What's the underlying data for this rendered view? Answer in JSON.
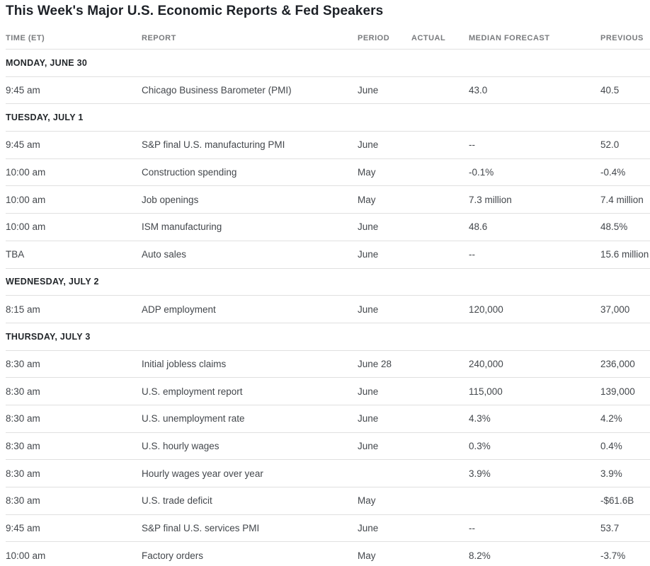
{
  "title": "This Week's Major U.S. Economic Reports & Fed Speakers",
  "columns": [
    "TIME (ET)",
    "REPORT",
    "PERIOD",
    "ACTUAL",
    "MEDIAN FORECAST",
    "PREVIOUS"
  ],
  "colors": {
    "title": "#1d2127",
    "day": "#23272b",
    "text": "#43474c",
    "muted": "#797b7e",
    "divider": "#e0e0e0",
    "bg": "#ffffff"
  },
  "groups": [
    {
      "day": "MONDAY, JUNE 30",
      "rows": [
        {
          "time": "9:45 am",
          "report": "Chicago Business Barometer (PMI)",
          "period": "June",
          "actual": "",
          "median_forecast": "43.0",
          "previous": "40.5"
        }
      ]
    },
    {
      "day": "TUESDAY, JULY 1",
      "rows": [
        {
          "time": "9:45 am",
          "report": "S&P final U.S. manufacturing PMI",
          "period": "June",
          "actual": "",
          "median_forecast": "--",
          "previous": "52.0"
        },
        {
          "time": "10:00 am",
          "report": "Construction spending",
          "period": "May",
          "actual": "",
          "median_forecast": "-0.1%",
          "previous": "-0.4%"
        },
        {
          "time": "10:00 am",
          "report": "Job openings",
          "period": "May",
          "actual": "",
          "median_forecast": "7.3 million",
          "previous": "7.4 million"
        },
        {
          "time": "10:00 am",
          "report": "ISM manufacturing",
          "period": "June",
          "actual": "",
          "median_forecast": "48.6",
          "previous": "48.5%"
        },
        {
          "time": "TBA",
          "report": "Auto sales",
          "period": "June",
          "actual": "",
          "median_forecast": "--",
          "previous": "15.6 million"
        }
      ]
    },
    {
      "day": "WEDNESDAY, JULY 2",
      "rows": [
        {
          "time": "8:15 am",
          "report": "ADP employment",
          "period": "June",
          "actual": "",
          "median_forecast": "120,000",
          "previous": "37,000"
        }
      ]
    },
    {
      "day": "THURSDAY, JULY 3",
      "rows": [
        {
          "time": "8:30 am",
          "report": "Initial jobless claims",
          "period": "June 28",
          "actual": "",
          "median_forecast": "240,000",
          "previous": "236,000"
        },
        {
          "time": "8:30 am",
          "report": "U.S. employment report",
          "period": "June",
          "actual": "",
          "median_forecast": "115,000",
          "previous": "139,000"
        },
        {
          "time": "8:30 am",
          "report": "U.S. unemployment rate",
          "period": "June",
          "actual": "",
          "median_forecast": "4.3%",
          "previous": "4.2%"
        },
        {
          "time": "8:30 am",
          "report": "U.S. hourly wages",
          "period": "June",
          "actual": "",
          "median_forecast": "0.3%",
          "previous": "0.4%"
        },
        {
          "time": "8:30 am",
          "report": "Hourly wages year over year",
          "period": "",
          "actual": "",
          "median_forecast": "3.9%",
          "previous": "3.9%"
        },
        {
          "time": "8:30 am",
          "report": "U.S. trade deficit",
          "period": "May",
          "actual": "",
          "median_forecast": "",
          "previous": "-$61.6B"
        },
        {
          "time": "9:45 am",
          "report": "S&P final U.S. services PMI",
          "period": "June",
          "actual": "",
          "median_forecast": "--",
          "previous": "53.7"
        },
        {
          "time": "10:00 am",
          "report": "Factory orders",
          "period": "May",
          "actual": "",
          "median_forecast": "8.2%",
          "previous": "-3.7%"
        }
      ]
    }
  ]
}
